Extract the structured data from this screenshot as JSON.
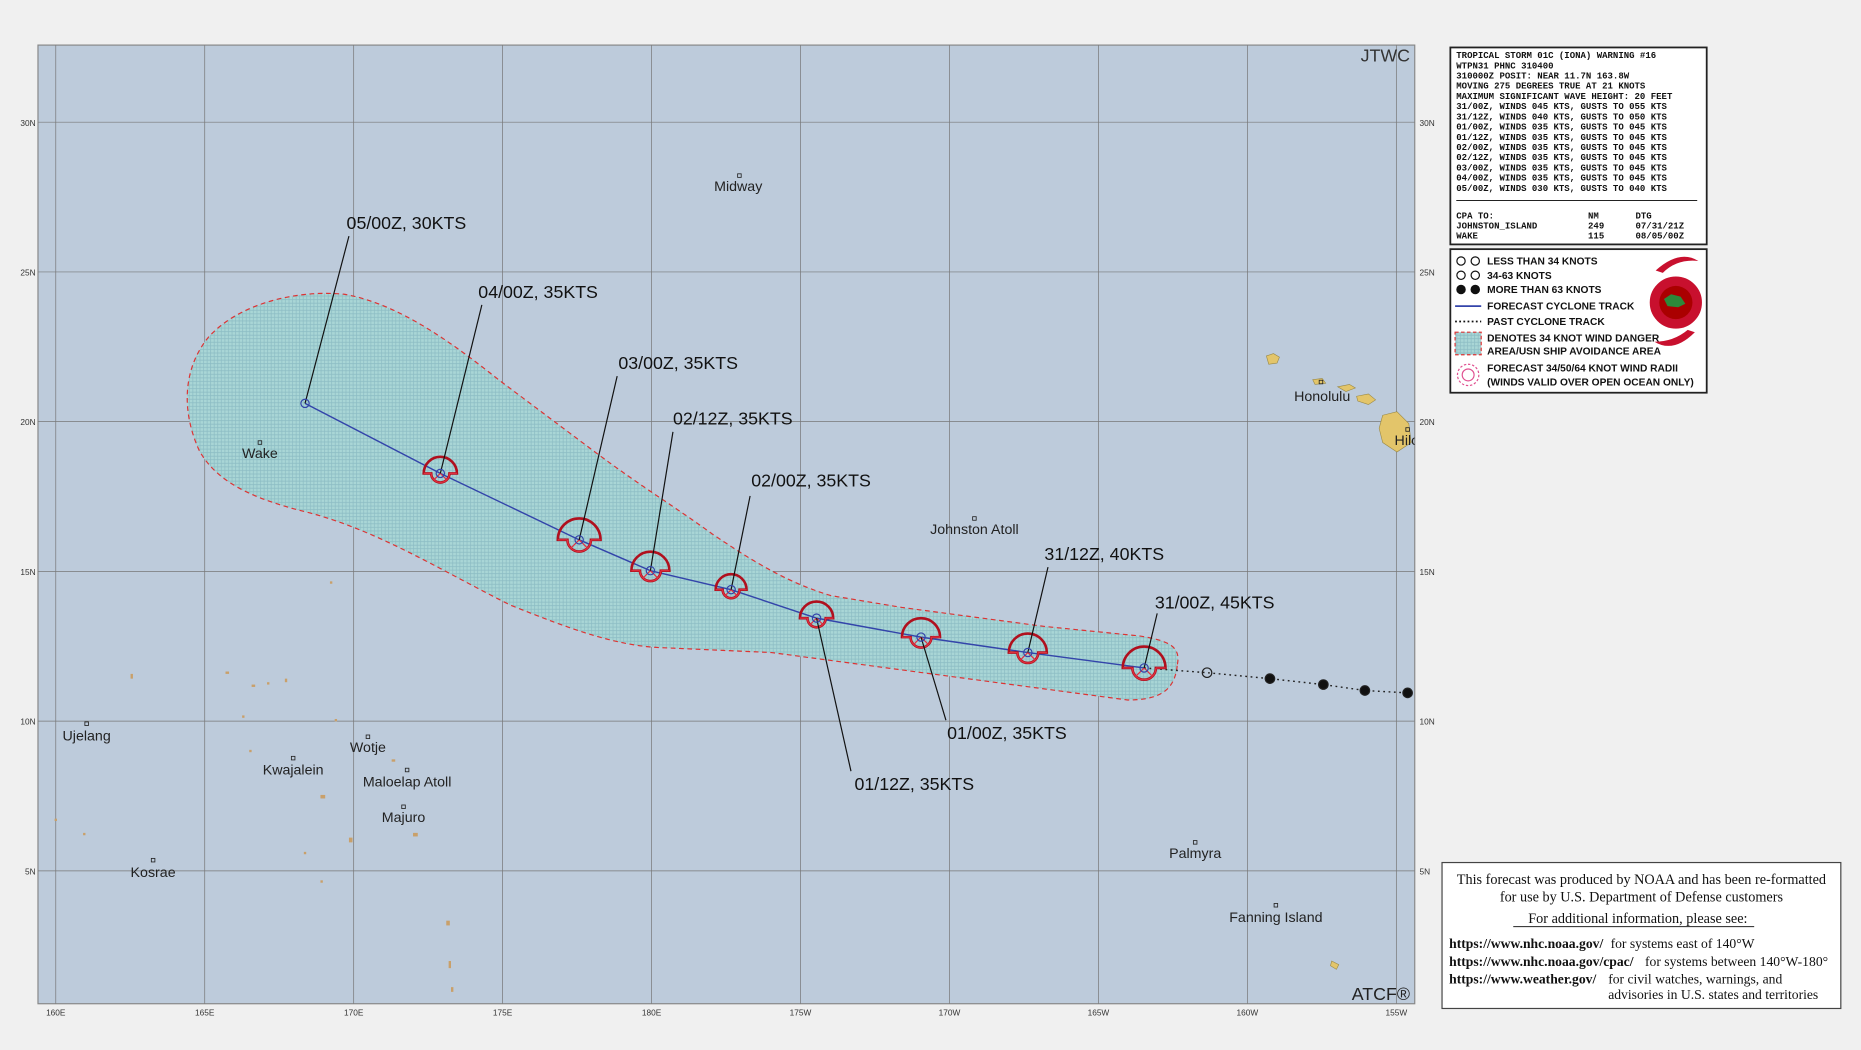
{
  "map": {
    "corner_top": "JTWC",
    "corner_bottom": "ATCF®",
    "lon_labels": [
      "160E",
      "165E",
      "170E",
      "175E",
      "180E",
      "175W",
      "170W",
      "165W",
      "160W",
      "155W"
    ],
    "lat_labels": [
      "30N",
      "25N",
      "20N",
      "15N",
      "10N",
      "5N"
    ],
    "places": [
      "Midway",
      "Wake",
      "Johnston Atoll",
      "Honolulu",
      "Hilo",
      "Ujelang",
      "Kwajalein",
      "Wotje",
      "Maloelap Atoll",
      "Majuro",
      "Kosrae",
      "Palmyra",
      "Fanning Island"
    ],
    "forecast_labels": [
      "31/00Z, 45KTS",
      "31/12Z, 40KTS",
      "01/00Z, 35KTS",
      "01/12Z, 35KTS",
      "02/00Z, 35KTS",
      "02/12Z, 35KTS",
      "03/00Z, 35KTS",
      "04/00Z, 35KTS",
      "05/00Z, 30KTS"
    ]
  },
  "warning": {
    "lines": [
      "TROPICAL STORM 01C (IONA) WARNING #16",
      "WTPN31 PHNC 310400",
      "310000Z POSIT: NEAR 11.7N 163.8W",
      "MOVING 275 DEGREES TRUE AT 21 KNOTS",
      "MAXIMUM SIGNIFICANT WAVE HEIGHT: 20 FEET",
      "31/00Z, WINDS 045 KTS, GUSTS TO 055 KTS",
      "31/12Z, WINDS 040 KTS, GUSTS TO 050 KTS",
      "01/00Z, WINDS 035 KTS, GUSTS TO 045 KTS",
      "01/12Z, WINDS 035 KTS, GUSTS TO 045 KTS",
      "02/00Z, WINDS 035 KTS, GUSTS TO 045 KTS",
      "02/12Z, WINDS 035 KTS, GUSTS TO 045 KTS",
      "03/00Z, WINDS 035 KTS, GUSTS TO 045 KTS",
      "04/00Z, WINDS 035 KTS, GUSTS TO 045 KTS",
      "05/00Z, WINDS 030 KTS, GUSTS TO 040 KTS"
    ],
    "cpa_header": [
      "CPA TO:",
      "NM",
      "DTG"
    ],
    "cpa_rows": [
      [
        "JOHNSTON_ISLAND",
        "249",
        "07/31/21Z"
      ],
      [
        "WAKE",
        "115",
        "08/05/00Z"
      ]
    ]
  },
  "legend": {
    "items": [
      "LESS THAN 34 KNOTS",
      "34-63 KNOTS",
      "MORE THAN 63 KNOTS",
      "FORECAST CYCLONE TRACK",
      "PAST CYCLONE TRACK",
      "DENOTES 34 KNOT WIND DANGER",
      "AREA/USN SHIP AVOIDANCE AREA",
      "FORECAST 34/50/64 KNOT WIND RADII",
      "(WINDS VALID OVER OPEN OCEAN ONLY)"
    ]
  },
  "disclaimer": {
    "intro": [
      "This forecast was produced by NOAA and has been re-formatted",
      "for use by U.S. Department of Defense customers"
    ],
    "more": "For additional information, please see:",
    "links": [
      [
        "https://www.nhc.noaa.gov/",
        "for systems east of 140°W"
      ],
      [
        "https://www.nhc.noaa.gov/cpac/",
        "for systems between 140°W-180°"
      ],
      [
        "https://www.weather.gov/",
        "for civil watches, warnings, and"
      ]
    ],
    "tail": "advisories in U.S. states and territories"
  }
}
